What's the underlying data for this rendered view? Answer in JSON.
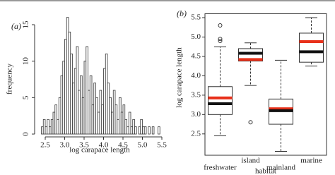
{
  "chart_data": [
    {
      "type": "histogram",
      "title": "(a)",
      "xlabel": "log carapace length",
      "ylabel": "frequency",
      "bins": [
        2.4,
        2.45,
        2.5,
        2.55,
        2.6,
        2.65,
        2.7,
        2.75,
        2.8,
        2.85,
        2.9,
        2.95,
        3.0,
        3.05,
        3.1,
        3.15,
        3.2,
        3.25,
        3.3,
        3.35,
        3.4,
        3.45,
        3.5,
        3.55,
        3.6,
        3.65,
        3.7,
        3.75,
        3.8,
        3.85,
        3.9,
        3.95,
        4.0,
        4.05,
        4.1,
        4.15,
        4.2,
        4.25,
        4.3,
        4.35,
        4.4,
        4.45,
        4.5,
        4.55,
        4.6,
        4.65,
        4.7,
        4.75,
        4.8,
        4.85,
        4.9,
        4.95,
        5.0,
        5.05,
        5.1,
        5.15,
        5.2,
        5.25,
        5.3,
        5.35,
        5.4,
        5.45
      ],
      "values": [
        1,
        2,
        1,
        2,
        1,
        2,
        3,
        4,
        2,
        5,
        8,
        10,
        13,
        16,
        14,
        11,
        7,
        9,
        12,
        6,
        8,
        5,
        10,
        12,
        6,
        8,
        4,
        7,
        5,
        3,
        6,
        4,
        9,
        11,
        7,
        5,
        3,
        6,
        4,
        2,
        5,
        3,
        4,
        2,
        1,
        3,
        1,
        2,
        1,
        0,
        1,
        2,
        1,
        1,
        0,
        1,
        0,
        1,
        0,
        0,
        1
      ],
      "color": "#ffffff",
      "edge_color": "#333333",
      "xlim": [
        2.3,
        5.6
      ],
      "xticks": [
        2.5,
        {
          "value": 3,
          "label": "3.0"
        },
        3.5,
        {
          "value": 4,
          "label": "4.0"
        },
        4.5,
        {
          "value": 5,
          "label": "5.0"
        },
        5.5
      ],
      "ylim": [
        0,
        16.5
      ],
      "yticks": [
        0,
        5,
        10,
        15
      ]
    },
    {
      "type": "box",
      "title": "(b)",
      "xlabel": "habitat",
      "ylabel": "log carapace length",
      "categories": [
        "freshwater",
        "island",
        "mainland",
        "marine"
      ],
      "whisker_low": [
        2.45,
        3.75,
        2.05,
        4.25
      ],
      "q1": [
        3.0,
        4.38,
        2.75,
        4.35
      ],
      "median": [
        3.28,
        4.58,
        3.1,
        4.62
      ],
      "mean": [
        3.43,
        4.42,
        3.15,
        4.88
      ],
      "q3": [
        3.72,
        4.7,
        3.4,
        5.1
      ],
      "whisker_high": [
        4.75,
        4.85,
        4.4,
        5.5
      ],
      "outliers": [
        [
          5.3,
          4.95,
          4.9
        ],
        [
          2.8
        ],
        [],
        []
      ],
      "median_color": "#111111",
      "mean_color": "#e8311a",
      "ylim": [
        1.95,
        5.6
      ],
      "yticks": [
        2.5,
        {
          "value": 3,
          "label": "3.0"
        },
        3.5,
        {
          "value": 4,
          "label": "4.0"
        },
        4.5,
        {
          "value": 5,
          "label": "5.0"
        },
        5.5
      ]
    }
  ]
}
